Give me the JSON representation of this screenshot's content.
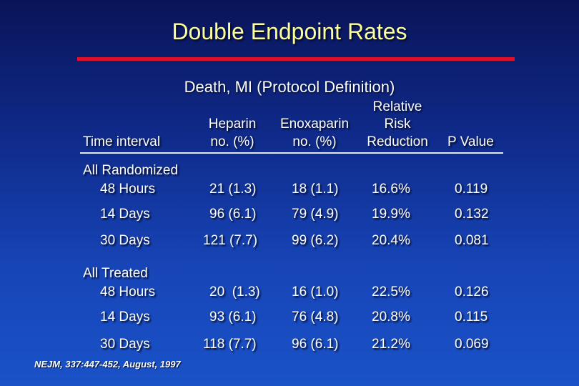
{
  "title": "Double Endpoint Rates",
  "subtitle": "Death, MI (Protocol Definition)",
  "columns": {
    "time_interval": "Time interval",
    "heparin_l1": "Heparin",
    "heparin_l2": "no. (%)",
    "enox_l1": "Enoxaparin",
    "enox_l2": "no. (%)",
    "rr_l1": "Relative",
    "rr_l2": "Risk",
    "rr_l3": "Reduction",
    "p_value": "P Value"
  },
  "groups": [
    {
      "label": "All Randomized",
      "rows": [
        {
          "interval": "48 Hours",
          "heparin": "21 (1.3)",
          "enoxaparin": "18 (1.1)",
          "rrr": "16.6%",
          "p": "0.119"
        },
        {
          "interval": "14 Days",
          "heparin": "96 (6.1)",
          "enoxaparin": "79 (4.9)",
          "rrr": "19.9%",
          "p": "0.132"
        },
        {
          "interval": "30 Days",
          "heparin": "121 (7.7)",
          "enoxaparin": "99 (6.2)",
          "rrr": "20.4%",
          "p": "0.081"
        }
      ]
    },
    {
      "label": "All Treated",
      "rows": [
        {
          "interval": "48 Hours",
          "heparin": "20  (1.3)",
          "enoxaparin": "16 (1.0)",
          "rrr": "22.5%",
          "p": "0.126"
        },
        {
          "interval": "14 Days",
          "heparin": "93 (6.1)",
          "enoxaparin": "76 (4.8)",
          "rrr": "20.8%",
          "p": "0.115"
        },
        {
          "interval": "30 Days",
          "heparin": "118 (7.7)",
          "enoxaparin": "96 (6.1)",
          "rrr": "21.2%",
          "p": "0.069"
        }
      ]
    }
  ],
  "footnote": "NEJM, 337:447-452, August, 1997",
  "colors": {
    "title": "#ffff99",
    "rule": "#e0102a",
    "text": "#ffffff"
  }
}
